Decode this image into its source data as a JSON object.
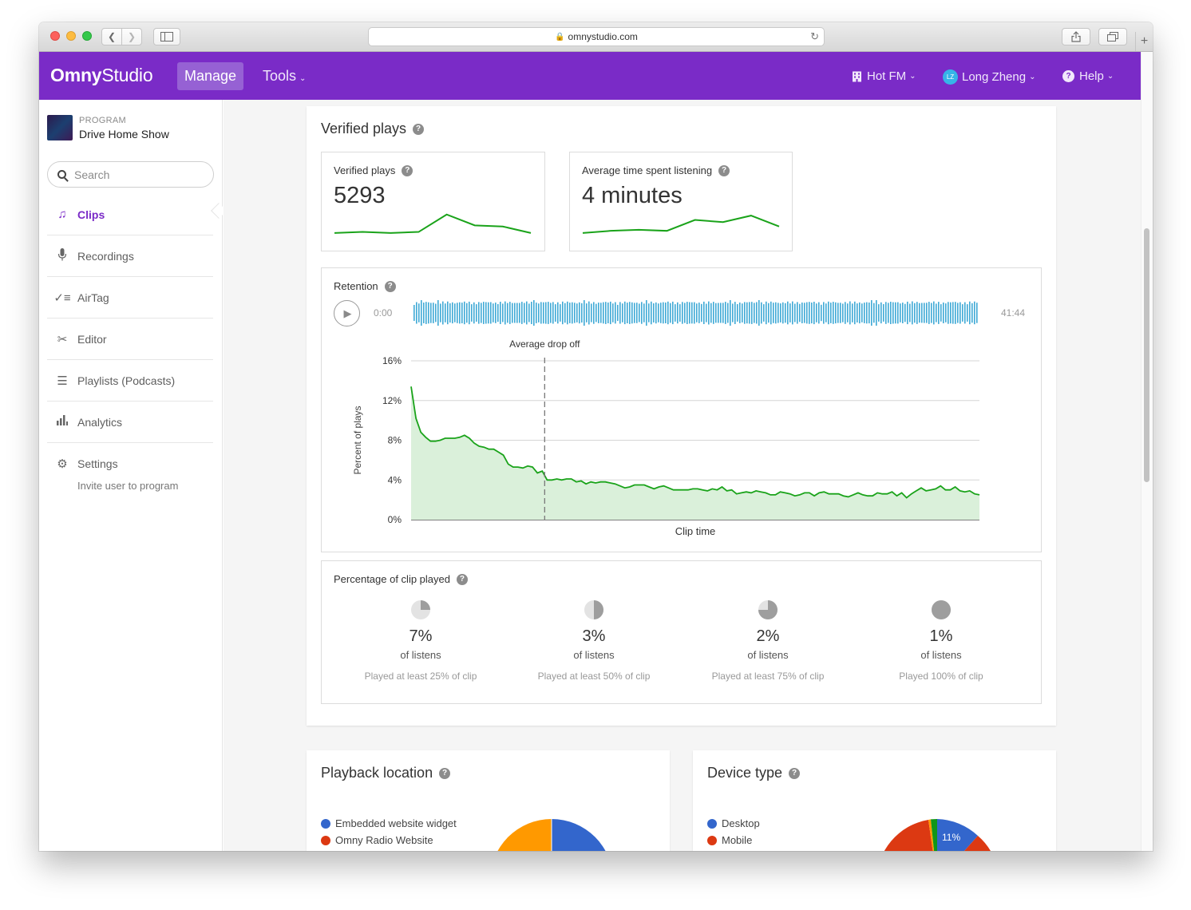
{
  "browser": {
    "url": "omnystudio.com"
  },
  "topnav": {
    "logo_left": "Omny",
    "logo_right": "Studio",
    "manage": "Manage",
    "tools": "Tools",
    "station": "Hot FM",
    "user_initials": "LZ",
    "user_name": "Long Zheng",
    "help": "Help"
  },
  "sidebar": {
    "program_label": "PROGRAM",
    "program_name": "Drive Home Show",
    "search_placeholder": "Search",
    "items": [
      {
        "label": "Clips",
        "icon": "music-note-icon"
      },
      {
        "label": "Recordings",
        "icon": "microphone-icon"
      },
      {
        "label": "AirTag",
        "icon": "check-list-icon"
      },
      {
        "label": "Editor",
        "icon": "scissors-icon"
      },
      {
        "label": "Playlists (Podcasts)",
        "icon": "list-icon"
      },
      {
        "label": "Analytics",
        "icon": "bar-chart-icon"
      },
      {
        "label": "Settings",
        "icon": "gear-icon"
      }
    ],
    "settings_sub": "Invite user to program"
  },
  "verified": {
    "title": "Verified plays",
    "plays_label": "Verified plays",
    "plays_value": "5293",
    "plays_trend": [
      3,
      4,
      3,
      4,
      20,
      10,
      9,
      3
    ],
    "avg_label": "Average time spent listening",
    "avg_value": "4 minutes",
    "avg_trend": [
      3,
      5,
      6,
      5,
      15,
      13,
      19,
      9
    ]
  },
  "retention": {
    "label": "Retention",
    "time_start": "0:00",
    "time_end": "41:44"
  },
  "chart_data": {
    "type": "area",
    "title": "",
    "xlabel": "Clip time",
    "ylabel": "Percent of plays",
    "ylim": [
      0,
      16
    ],
    "yticks": [
      "0%",
      "4%",
      "8%",
      "12%",
      "16%"
    ],
    "annotation": "Average drop off",
    "annotation_x": 0.235,
    "grid": true,
    "series": [
      {
        "values": [
          13.4,
          10.2,
          8.8,
          8.3,
          7.9,
          7.9,
          8.0,
          8.2,
          8.2,
          8.2,
          8.3,
          8.5,
          8.2,
          7.7,
          7.4,
          7.3,
          7.1,
          7.1,
          6.8,
          6.5,
          5.6,
          5.3,
          5.3,
          5.2,
          5.4,
          5.3,
          4.7,
          4.9,
          4.0,
          4.0,
          4.1,
          4.0,
          4.1,
          4.1,
          3.8,
          3.9,
          3.6,
          3.8,
          3.7,
          3.8,
          3.8,
          3.7,
          3.6,
          3.4,
          3.2,
          3.3,
          3.5,
          3.5,
          3.5,
          3.3,
          3.1,
          3.3,
          3.4,
          3.2,
          3.0,
          3.0,
          3.0,
          3.0,
          3.1,
          3.1,
          3.0,
          2.9,
          3.1,
          3.0,
          3.3,
          2.9,
          3.0,
          2.6,
          2.7,
          2.8,
          2.7,
          2.9,
          2.8,
          2.7,
          2.5,
          2.5,
          2.8,
          2.7,
          2.6,
          2.4,
          2.5,
          2.7,
          2.7,
          2.4,
          2.7,
          2.8,
          2.6,
          2.6,
          2.6,
          2.4,
          2.3,
          2.5,
          2.7,
          2.5,
          2.4,
          2.4,
          2.7,
          2.6,
          2.6,
          2.8,
          2.4,
          2.7,
          2.2,
          2.6,
          2.9,
          3.2,
          2.9,
          3.0,
          3.1,
          3.4,
          3.0,
          3.0,
          3.3,
          2.9,
          2.8,
          2.9,
          2.6,
          2.5
        ]
      }
    ]
  },
  "clip_played": {
    "label": "Percentage of clip played",
    "items": [
      {
        "value": "7%",
        "sub": "of listens",
        "desc": "Played at least 25% of clip",
        "fraction": 0.25
      },
      {
        "value": "3%",
        "sub": "of listens",
        "desc": "Played at least 50% of clip",
        "fraction": 0.5
      },
      {
        "value": "2%",
        "sub": "of listens",
        "desc": "Played at least 75% of clip",
        "fraction": 0.75
      },
      {
        "value": "1%",
        "sub": "of listens",
        "desc": "Played 100% of clip",
        "fraction": 1.0
      }
    ]
  },
  "playback_location": {
    "title": "Playback location",
    "legend": [
      {
        "label": "Embedded website widget",
        "color": "#3366cc"
      },
      {
        "label": "Omny Radio Website",
        "color": "#dc3912"
      }
    ]
  },
  "device_type": {
    "title": "Device type",
    "legend": [
      {
        "label": "Desktop",
        "color": "#3366cc"
      },
      {
        "label": "Mobile",
        "color": "#dc3912"
      }
    ],
    "slice_label": "11%"
  },
  "colors": {
    "brand": "#7a2bc7",
    "line": "#1aa31a",
    "area": "#daf0da",
    "waveform": "#3fa9d6",
    "pie_grey": "#9e9e9e"
  }
}
